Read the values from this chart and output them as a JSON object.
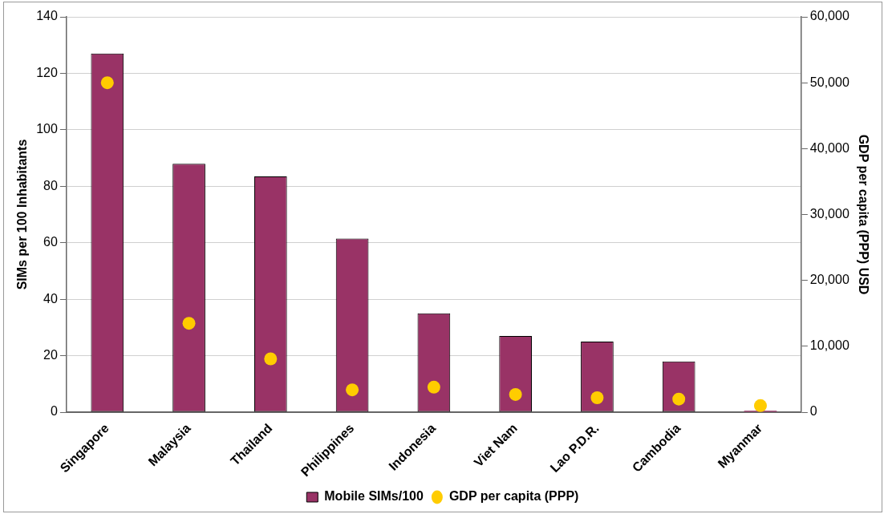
{
  "chart_data": {
    "type": "bar",
    "categories": [
      "Singapore",
      "Malaysia",
      "Thailand",
      "Philippines",
      "Indonesia",
      "Viet Nam",
      "Lao P.D.R.",
      "Cambodia",
      "Myanmar"
    ],
    "ylabel": "SIMs per 100 Inhabitants",
    "y2label": "GDP per capita (PPP) USD",
    "ylim": [
      0,
      140
    ],
    "yticks": [
      0,
      20,
      40,
      60,
      80,
      100,
      120,
      140
    ],
    "y2lim": [
      0,
      60000
    ],
    "y2ticks": [
      {
        "value": 0,
        "label": "0"
      },
      {
        "value": 10000,
        "label": "10,000"
      },
      {
        "value": 20000,
        "label": "20,000"
      },
      {
        "value": 30000,
        "label": "30,000"
      },
      {
        "value": 40000,
        "label": "40,000"
      },
      {
        "value": 50000,
        "label": "50,000"
      },
      {
        "value": 60000,
        "label": "60,000"
      }
    ],
    "grid": "y",
    "legend": "bottom",
    "series": [
      {
        "name": "Mobile SIMs/100",
        "color": "#993366",
        "values": [
          127,
          88,
          83.5,
          61.5,
          35,
          27,
          25,
          18,
          0.5
        ]
      },
      {
        "name": "GDP per capita (PPP)",
        "type": "scatter",
        "axis": "y2",
        "marker": "circle",
        "color": "#ffcc00",
        "x": [
          "Singapore",
          "Malaysia",
          "Thailand",
          "Philippines",
          "Indonesia",
          "Viet Nam",
          "Lao P.D.R.",
          "Cambodia",
          "Myanmar"
        ],
        "values": [
          50000,
          13500,
          8100,
          3400,
          3800,
          2700,
          2200,
          2000,
          1000
        ]
      }
    ]
  }
}
